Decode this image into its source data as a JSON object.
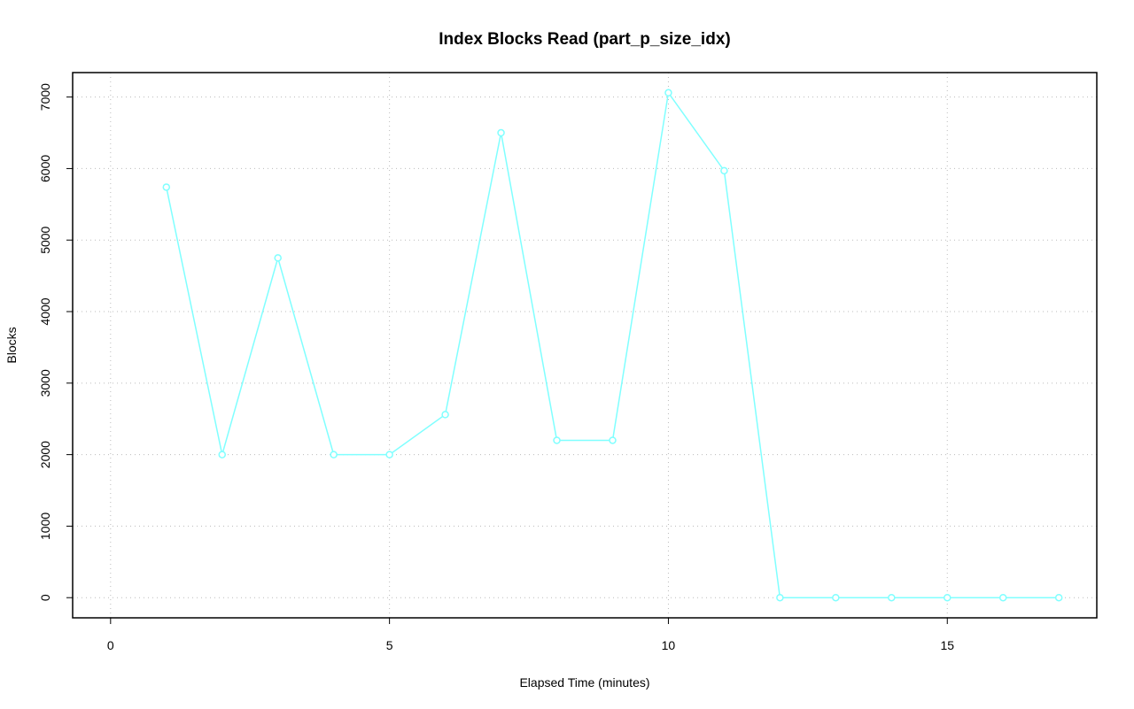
{
  "chart_data": {
    "type": "line",
    "title": "Index Blocks Read (part_p_size_idx)",
    "x_label": "Elapsed Time (minutes)",
    "y_label": "Blocks",
    "x": [
      1,
      2,
      3,
      4,
      5,
      6,
      7,
      8,
      9,
      10,
      11,
      12,
      13,
      14,
      15,
      16,
      17
    ],
    "values": [
      5740,
      2000,
      4750,
      2000,
      2000,
      2560,
      6500,
      2200,
      2200,
      7060,
      5970,
      0,
      0,
      0,
      0,
      0,
      0
    ],
    "color": "#80ffff",
    "xlim": [
      -0.68,
      17.68
    ],
    "xticks": [
      0,
      5,
      10,
      15
    ],
    "ylim": [
      -282,
      7342
    ],
    "yticks": [
      0,
      1000,
      2000,
      3000,
      4000,
      5000,
      6000,
      7000
    ],
    "grid": true
  }
}
